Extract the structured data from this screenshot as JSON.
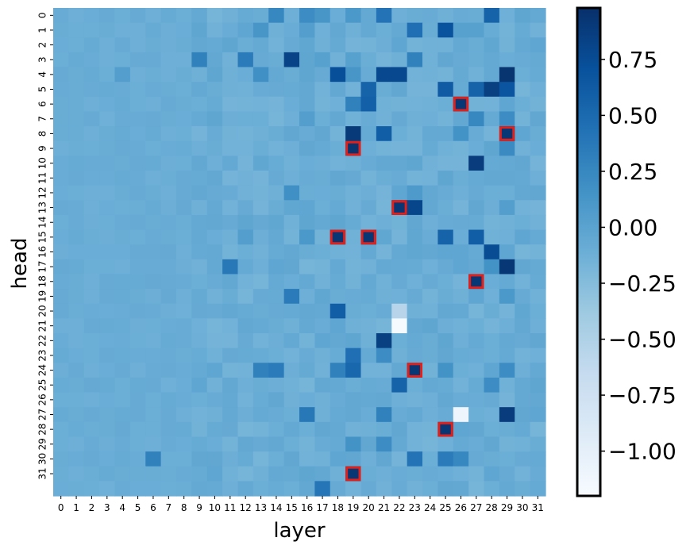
{
  "chart_data": {
    "type": "heatmap",
    "xlabel": "layer",
    "ylabel": "head",
    "x_ticks": [
      "0",
      "1",
      "2",
      "3",
      "4",
      "5",
      "6",
      "7",
      "8",
      "9",
      "10",
      "11",
      "12",
      "13",
      "14",
      "15",
      "16",
      "17",
      "18",
      "19",
      "20",
      "21",
      "22",
      "23",
      "24",
      "25",
      "26",
      "27",
      "28",
      "29",
      "30",
      "31"
    ],
    "y_ticks": [
      "0",
      "1",
      "2",
      "3",
      "4",
      "5",
      "6",
      "7",
      "8",
      "9",
      "10",
      "11",
      "12",
      "13",
      "14",
      "15",
      "16",
      "17",
      "18",
      "19",
      "20",
      "21",
      "22",
      "23",
      "24",
      "25",
      "26",
      "27",
      "28",
      "29",
      "30",
      "31"
    ],
    "colorbar": {
      "colormap": "Blues",
      "vmin": -1.2,
      "vmax": 0.98,
      "ticks": [
        0.75,
        0.5,
        0.25,
        0.0,
        -0.25,
        -0.5,
        -0.75,
        -1.0
      ],
      "tick_labels": [
        "0.75",
        "0.50",
        "0.25",
        "0.00",
        "−0.25",
        "−0.50",
        "−0.75",
        "−1.00"
      ]
    },
    "background_value": -0.1,
    "cells": [
      {
        "head": 0,
        "layer": 14,
        "value": 0.25
      },
      {
        "head": 0,
        "layer": 16,
        "value": 0.2
      },
      {
        "head": 0,
        "layer": 17,
        "value": 0.12
      },
      {
        "head": 0,
        "layer": 19,
        "value": 0.1
      },
      {
        "head": 0,
        "layer": 21,
        "value": 0.42
      },
      {
        "head": 0,
        "layer": 28,
        "value": 0.55
      },
      {
        "head": 1,
        "layer": 13,
        "value": 0.12
      },
      {
        "head": 1,
        "layer": 16,
        "value": 0.05
      },
      {
        "head": 1,
        "layer": 23,
        "value": 0.45
      },
      {
        "head": 1,
        "layer": 25,
        "value": 0.7
      },
      {
        "head": 1,
        "layer": 26,
        "value": 0.02
      },
      {
        "head": 1,
        "layer": 27,
        "value": 0.02
      },
      {
        "head": 3,
        "layer": 9,
        "value": 0.3
      },
      {
        "head": 3,
        "layer": 12,
        "value": 0.35
      },
      {
        "head": 3,
        "layer": 15,
        "value": 0.82
      },
      {
        "head": 3,
        "layer": 17,
        "value": 0.02
      },
      {
        "head": 3,
        "layer": 19,
        "value": 0.02
      },
      {
        "head": 3,
        "layer": 23,
        "value": 0.3
      },
      {
        "head": 4,
        "layer": 4,
        "value": 0.05
      },
      {
        "head": 4,
        "layer": 13,
        "value": 0.18
      },
      {
        "head": 4,
        "layer": 18,
        "value": 0.72
      },
      {
        "head": 4,
        "layer": 19,
        "value": 0.12
      },
      {
        "head": 4,
        "layer": 21,
        "value": 0.78
      },
      {
        "head": 4,
        "layer": 22,
        "value": 0.78
      },
      {
        "head": 4,
        "layer": 29,
        "value": 0.95
      },
      {
        "head": 5,
        "layer": 20,
        "value": 0.55
      },
      {
        "head": 5,
        "layer": 25,
        "value": 0.62
      },
      {
        "head": 5,
        "layer": 27,
        "value": 0.55
      },
      {
        "head": 5,
        "layer": 28,
        "value": 0.85
      },
      {
        "head": 5,
        "layer": 29,
        "value": 0.68
      },
      {
        "head": 6,
        "layer": 19,
        "value": 0.3
      },
      {
        "head": 6,
        "layer": 20,
        "value": 0.58
      },
      {
        "head": 6,
        "layer": 26,
        "value": 0.92
      },
      {
        "head": 7,
        "layer": 16,
        "value": 0.05
      },
      {
        "head": 7,
        "layer": 27,
        "value": 0.25
      },
      {
        "head": 7,
        "layer": 29,
        "value": 0.2
      },
      {
        "head": 8,
        "layer": 19,
        "value": 0.9
      },
      {
        "head": 8,
        "layer": 21,
        "value": 0.6
      },
      {
        "head": 8,
        "layer": 26,
        "value": 0.15
      },
      {
        "head": 8,
        "layer": 29,
        "value": 0.92
      },
      {
        "head": 9,
        "layer": 19,
        "value": 0.95
      },
      {
        "head": 9,
        "layer": 29,
        "value": 0.22
      },
      {
        "head": 10,
        "layer": 27,
        "value": 0.88
      },
      {
        "head": 12,
        "layer": 15,
        "value": 0.18
      },
      {
        "head": 12,
        "layer": 23,
        "value": 0.08
      },
      {
        "head": 13,
        "layer": 22,
        "value": 0.92
      },
      {
        "head": 13,
        "layer": 23,
        "value": 0.8
      },
      {
        "head": 13,
        "layer": 29,
        "value": 0.05
      },
      {
        "head": 15,
        "layer": 18,
        "value": 0.92
      },
      {
        "head": 15,
        "layer": 20,
        "value": 0.92
      },
      {
        "head": 15,
        "layer": 16,
        "value": 0.1
      },
      {
        "head": 15,
        "layer": 25,
        "value": 0.55
      },
      {
        "head": 15,
        "layer": 27,
        "value": 0.6
      },
      {
        "head": 15,
        "layer": 12,
        "value": 0.05
      },
      {
        "head": 16,
        "layer": 28,
        "value": 0.75
      },
      {
        "head": 17,
        "layer": 11,
        "value": 0.38
      },
      {
        "head": 17,
        "layer": 28,
        "value": 0.15
      },
      {
        "head": 17,
        "layer": 29,
        "value": 0.92
      },
      {
        "head": 18,
        "layer": 27,
        "value": 0.92
      },
      {
        "head": 19,
        "layer": 15,
        "value": 0.35
      },
      {
        "head": 19,
        "layer": 29,
        "value": 0.1
      },
      {
        "head": 20,
        "layer": 22,
        "value": -0.55
      },
      {
        "head": 20,
        "layer": 18,
        "value": 0.6
      },
      {
        "head": 21,
        "layer": 22,
        "value": -1.18
      },
      {
        "head": 22,
        "layer": 21,
        "value": 0.85
      },
      {
        "head": 23,
        "layer": 19,
        "value": 0.45
      },
      {
        "head": 23,
        "layer": 21,
        "value": 0.2
      },
      {
        "head": 24,
        "layer": 18,
        "value": 0.3
      },
      {
        "head": 24,
        "layer": 19,
        "value": 0.52
      },
      {
        "head": 24,
        "layer": 23,
        "value": 0.92
      },
      {
        "head": 24,
        "layer": 13,
        "value": 0.3
      },
      {
        "head": 24,
        "layer": 14,
        "value": 0.35
      },
      {
        "head": 24,
        "layer": 25,
        "value": 0.15
      },
      {
        "head": 24,
        "layer": 29,
        "value": 0.2
      },
      {
        "head": 25,
        "layer": 22,
        "value": 0.55
      },
      {
        "head": 25,
        "layer": 28,
        "value": 0.2
      },
      {
        "head": 27,
        "layer": 16,
        "value": 0.38
      },
      {
        "head": 27,
        "layer": 21,
        "value": 0.3
      },
      {
        "head": 27,
        "layer": 26,
        "value": -1.1
      },
      {
        "head": 27,
        "layer": 29,
        "value": 0.88
      },
      {
        "head": 28,
        "layer": 25,
        "value": 0.92
      },
      {
        "head": 29,
        "layer": 19,
        "value": 0.15
      },
      {
        "head": 29,
        "layer": 21,
        "value": 0.2
      },
      {
        "head": 30,
        "layer": 6,
        "value": 0.3
      },
      {
        "head": 30,
        "layer": 23,
        "value": 0.42
      },
      {
        "head": 30,
        "layer": 25,
        "value": 0.35
      },
      {
        "head": 30,
        "layer": 26,
        "value": 0.25
      },
      {
        "head": 31,
        "layer": 19,
        "value": 0.92
      },
      {
        "head": 32,
        "layer": 17,
        "value": 0.4
      }
    ],
    "highlighted": [
      {
        "head": 6,
        "layer": 26
      },
      {
        "head": 8,
        "layer": 29
      },
      {
        "head": 9,
        "layer": 19
      },
      {
        "head": 13,
        "layer": 22
      },
      {
        "head": 15,
        "layer": 18
      },
      {
        "head": 15,
        "layer": 20
      },
      {
        "head": 18,
        "layer": 27
      },
      {
        "head": 24,
        "layer": 23
      },
      {
        "head": 28,
        "layer": 25
      },
      {
        "head": 31,
        "layer": 19
      }
    ],
    "highlight_color": "#e0201b"
  }
}
